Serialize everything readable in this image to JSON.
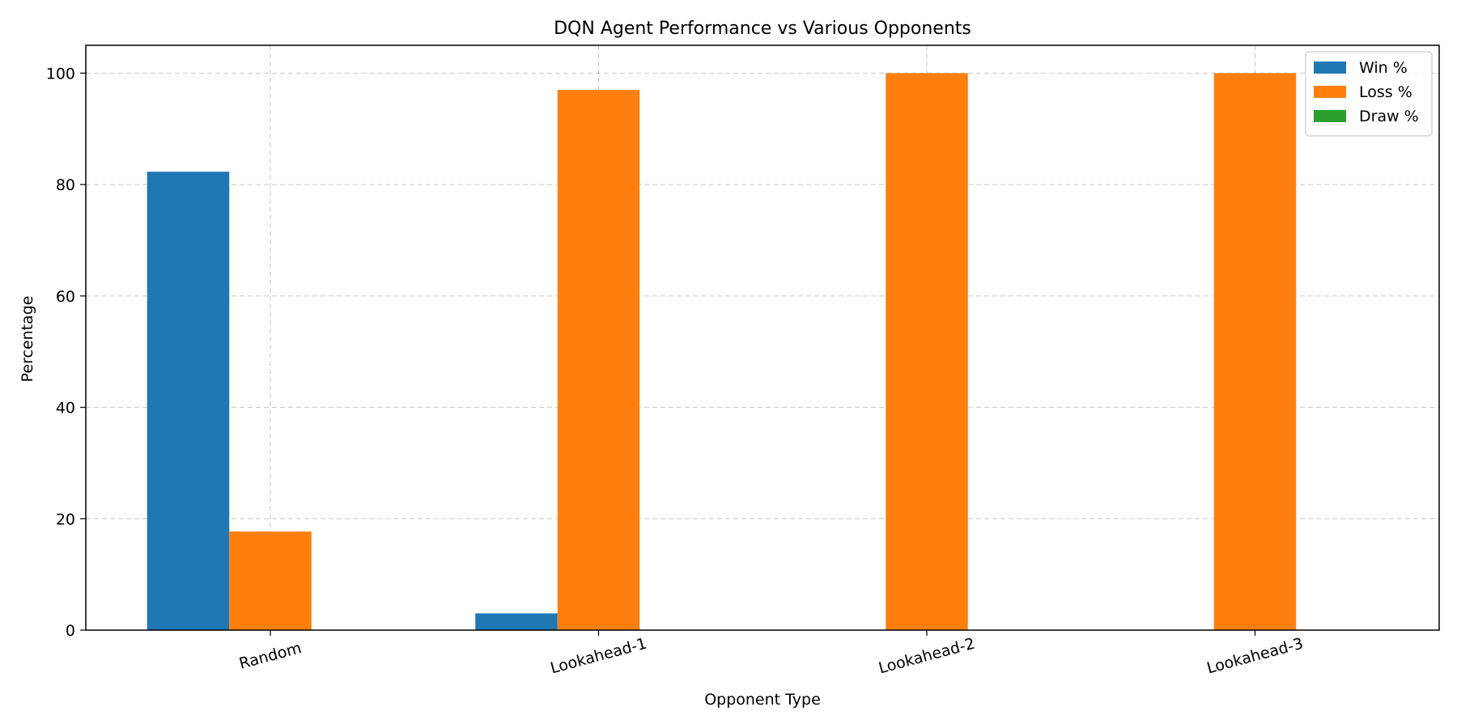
{
  "chart_data": {
    "type": "bar",
    "title": "DQN Agent Performance vs Various Opponents",
    "xlabel": "Opponent Type",
    "ylabel": "Percentage",
    "categories": [
      "Random",
      "Lookahead-1",
      "Lookahead-2",
      "Lookahead-3"
    ],
    "series": [
      {
        "name": "Win %",
        "color": "#1f77b4",
        "values": [
          82.3,
          3.0,
          0.0,
          0.0
        ]
      },
      {
        "name": "Loss %",
        "color": "#ff7f0e",
        "values": [
          17.7,
          97.0,
          100.0,
          100.0
        ]
      },
      {
        "name": "Draw %",
        "color": "#2ca02c",
        "values": [
          0.0,
          0.0,
          0.0,
          0.0
        ]
      }
    ],
    "ylim": [
      0,
      105
    ],
    "yticks": [
      0,
      20,
      40,
      60,
      80,
      100
    ],
    "grid": true,
    "legend_position": "top-right",
    "xtick_rotation_deg": 15
  }
}
